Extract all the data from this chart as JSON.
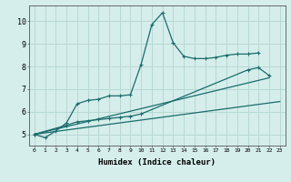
{
  "xlabel": "Humidex (Indice chaleur)",
  "xlim": [
    -0.5,
    23.5
  ],
  "ylim": [
    4.5,
    10.7
  ],
  "xticks": [
    0,
    1,
    2,
    3,
    4,
    5,
    6,
    7,
    8,
    9,
    10,
    11,
    12,
    13,
    14,
    15,
    16,
    17,
    18,
    19,
    20,
    21,
    22,
    23
  ],
  "yticks": [
    5,
    6,
    7,
    8,
    9,
    10
  ],
  "background_color": "#d5eeeb",
  "grid_color": "#b8d8d4",
  "line_color": "#1a6b6b",
  "line1_x": [
    0,
    1,
    2,
    3,
    4,
    5,
    6,
    7,
    8,
    9,
    10,
    11,
    12,
    13,
    14,
    15,
    16,
    17,
    18,
    19,
    20,
    21
  ],
  "line1_y": [
    5.0,
    4.85,
    5.15,
    5.5,
    6.35,
    6.5,
    6.55,
    6.7,
    6.7,
    6.75,
    8.1,
    9.85,
    10.38,
    9.05,
    8.45,
    8.35,
    8.35,
    8.4,
    8.5,
    8.55,
    8.55,
    8.6
  ],
  "line2_x": [
    0,
    3,
    4,
    5,
    6,
    7,
    8,
    9,
    10,
    20,
    21,
    22
  ],
  "line2_y": [
    5.0,
    5.4,
    5.55,
    5.6,
    5.65,
    5.7,
    5.75,
    5.8,
    5.9,
    7.85,
    7.95,
    7.6
  ],
  "line3_x": [
    0,
    23
  ],
  "line3_y": [
    5.0,
    6.45
  ],
  "line4_x": [
    0,
    22
  ],
  "line4_y": [
    5.0,
    7.5
  ]
}
